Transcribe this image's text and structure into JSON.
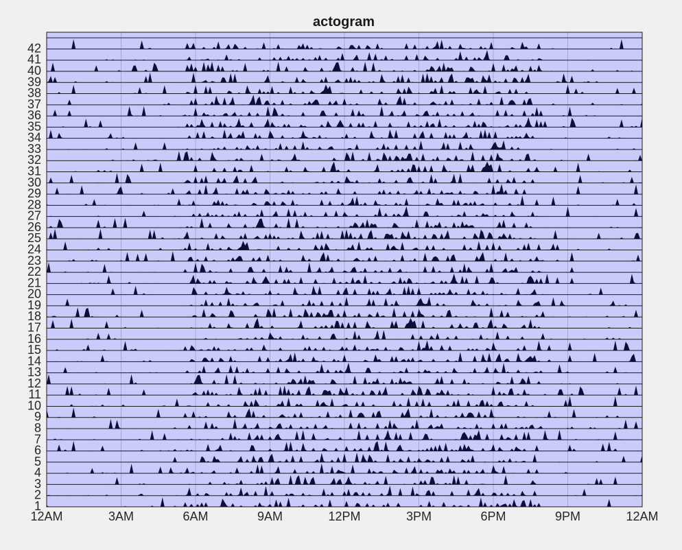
{
  "chart_data": {
    "type": "area",
    "title": "actogram",
    "xlabel": "",
    "ylabel": "",
    "x_ticks": [
      "12AM",
      "3AM",
      "6AM",
      "9AM",
      "12PM",
      "3PM",
      "6PM",
      "9PM",
      "12AM"
    ],
    "xlim_hours": [
      0,
      24
    ],
    "rows": [
      1,
      2,
      3,
      4,
      5,
      6,
      7,
      8,
      9,
      10,
      11,
      12,
      13,
      14,
      15,
      16,
      17,
      18,
      19,
      20,
      21,
      22,
      23,
      24,
      25,
      26,
      27,
      28,
      29,
      30,
      31,
      32,
      33,
      34,
      35,
      36,
      37,
      38,
      39,
      40,
      41,
      42
    ],
    "row_label_order": "bottom-to-top",
    "grid": true,
    "colors": {
      "background": "#cbcbfb",
      "activity": "#0e0e3a",
      "figure": "#f0f0f0",
      "grid": "#000000"
    }
  }
}
